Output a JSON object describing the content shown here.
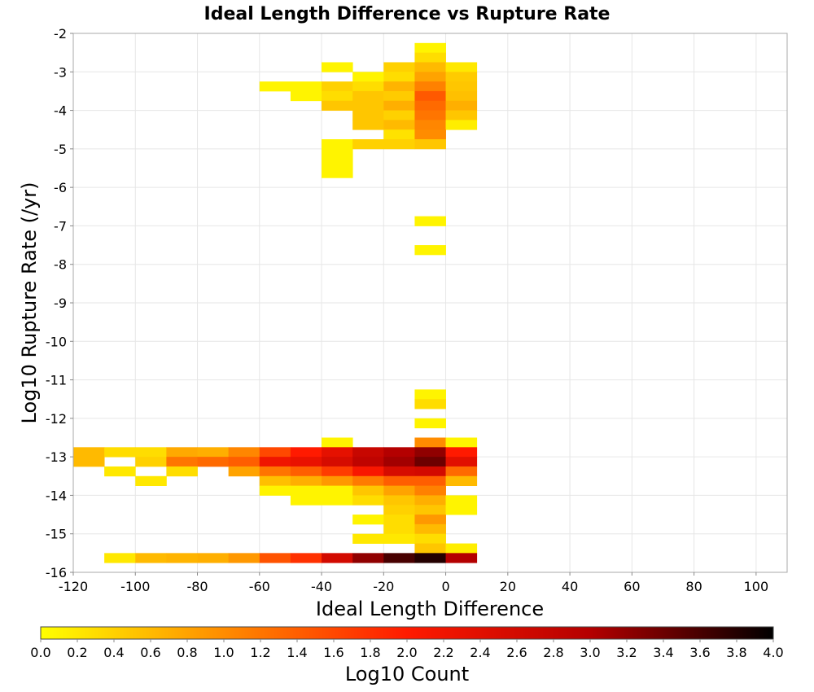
{
  "chart_data": {
    "type": "heatmap",
    "title": "Ideal Length Difference vs Rupture Rate",
    "xlabel": "Ideal Length Difference",
    "ylabel": "Log10 Rupture Rate (/yr)",
    "xlim": [
      -120,
      110
    ],
    "ylim": [
      -16,
      -2
    ],
    "x_ticks": [
      "-120",
      "-100",
      "-80",
      "-60",
      "-40",
      "-20",
      "0",
      "20",
      "40",
      "60",
      "80",
      "100"
    ],
    "y_ticks": [
      "-2",
      "-3",
      "-4",
      "-5",
      "-6",
      "-7",
      "-8",
      "-9",
      "-10",
      "-11",
      "-12",
      "-13",
      "-14",
      "-15",
      "-16"
    ],
    "grid": true,
    "bin_width_x": 10,
    "bin_height_y": 0.25,
    "colorbar": {
      "label": "Log10 Count",
      "range": [
        0.0,
        4.0
      ],
      "ticks": [
        "0.0",
        "0.2",
        "0.4",
        "0.6",
        "0.8",
        "1.0",
        "1.2",
        "1.4",
        "1.6",
        "1.8",
        "2.0",
        "2.2",
        "2.4",
        "2.6",
        "2.8",
        "3.0",
        "3.2",
        "3.4",
        "3.6",
        "3.8",
        "4.0"
      ],
      "colors": [
        "#ffff00",
        "#ff8c00",
        "#ff1a00",
        "#b40000",
        "#000000"
      ]
    },
    "cells": [
      {
        "x": -10,
        "y": -2.25,
        "v": 0.1
      },
      {
        "x": -10,
        "y": -2.5,
        "v": 0.3
      },
      {
        "x": -40,
        "y": -2.75,
        "v": 0.1
      },
      {
        "x": -20,
        "y": -2.75,
        "v": 0.4
      },
      {
        "x": -10,
        "y": -2.75,
        "v": 0.6
      },
      {
        "x": 0,
        "y": -2.75,
        "v": 0.2
      },
      {
        "x": -30,
        "y": -3.0,
        "v": 0.1
      },
      {
        "x": -20,
        "y": -3.0,
        "v": 0.3
      },
      {
        "x": -10,
        "y": -3.0,
        "v": 0.8
      },
      {
        "x": 0,
        "y": -3.0,
        "v": 0.45
      },
      {
        "x": -60,
        "y": -3.25,
        "v": 0.1
      },
      {
        "x": -50,
        "y": -3.25,
        "v": 0.1
      },
      {
        "x": -40,
        "y": -3.25,
        "v": 0.4
      },
      {
        "x": -30,
        "y": -3.25,
        "v": 0.3
      },
      {
        "x": -20,
        "y": -3.25,
        "v": 0.65
      },
      {
        "x": -10,
        "y": -3.25,
        "v": 1.1
      },
      {
        "x": 0,
        "y": -3.25,
        "v": 0.5
      },
      {
        "x": -50,
        "y": -3.5,
        "v": 0.1
      },
      {
        "x": -40,
        "y": -3.5,
        "v": 0.3
      },
      {
        "x": -30,
        "y": -3.5,
        "v": 0.5
      },
      {
        "x": -20,
        "y": -3.5,
        "v": 0.45
      },
      {
        "x": -10,
        "y": -3.5,
        "v": 1.45
      },
      {
        "x": 0,
        "y": -3.5,
        "v": 0.55
      },
      {
        "x": -40,
        "y": -3.75,
        "v": 0.5
      },
      {
        "x": -30,
        "y": -3.75,
        "v": 0.5
      },
      {
        "x": -20,
        "y": -3.75,
        "v": 0.7
      },
      {
        "x": -10,
        "y": -3.75,
        "v": 1.3
      },
      {
        "x": 0,
        "y": -3.75,
        "v": 0.7
      },
      {
        "x": -30,
        "y": -4.0,
        "v": 0.5
      },
      {
        "x": -20,
        "y": -4.0,
        "v": 0.4
      },
      {
        "x": -10,
        "y": -4.0,
        "v": 1.2
      },
      {
        "x": 0,
        "y": -4.0,
        "v": 0.5
      },
      {
        "x": -30,
        "y": -4.25,
        "v": 0.5
      },
      {
        "x": -20,
        "y": -4.25,
        "v": 0.6
      },
      {
        "x": -10,
        "y": -4.25,
        "v": 1.05
      },
      {
        "x": 0,
        "y": -4.25,
        "v": 0.15
      },
      {
        "x": -20,
        "y": -4.5,
        "v": 0.25
      },
      {
        "x": -10,
        "y": -4.5,
        "v": 1.0
      },
      {
        "x": -40,
        "y": -4.75,
        "v": 0.1
      },
      {
        "x": -30,
        "y": -4.75,
        "v": 0.4
      },
      {
        "x": -20,
        "y": -4.75,
        "v": 0.4
      },
      {
        "x": -10,
        "y": -4.75,
        "v": 0.5
      },
      {
        "x": -40,
        "y": -5.0,
        "v": 0.1
      },
      {
        "x": -40,
        "y": -5.25,
        "v": 0.1
      },
      {
        "x": -40,
        "y": -5.5,
        "v": 0.1
      },
      {
        "x": -10,
        "y": -6.75,
        "v": 0.1
      },
      {
        "x": -10,
        "y": -7.5,
        "v": 0.1
      },
      {
        "x": -10,
        "y": -11.25,
        "v": 0.1
      },
      {
        "x": -10,
        "y": -11.5,
        "v": 0.3
      },
      {
        "x": -10,
        "y": -12.0,
        "v": 0.1
      },
      {
        "x": -40,
        "y": -12.5,
        "v": 0.1
      },
      {
        "x": -10,
        "y": -12.5,
        "v": 1.0
      },
      {
        "x": 0,
        "y": -12.5,
        "v": 0.1
      },
      {
        "x": -120,
        "y": -12.75,
        "v": 0.6
      },
      {
        "x": -110,
        "y": -12.75,
        "v": 0.3
      },
      {
        "x": -100,
        "y": -12.75,
        "v": 0.3
      },
      {
        "x": -90,
        "y": -12.75,
        "v": 0.75
      },
      {
        "x": -80,
        "y": -12.75,
        "v": 0.7
      },
      {
        "x": -70,
        "y": -12.75,
        "v": 1.05
      },
      {
        "x": -60,
        "y": -12.75,
        "v": 1.6
      },
      {
        "x": -50,
        "y": -12.75,
        "v": 2.0
      },
      {
        "x": -40,
        "y": -12.75,
        "v": 2.35
      },
      {
        "x": -30,
        "y": -12.75,
        "v": 2.75
      },
      {
        "x": -20,
        "y": -12.75,
        "v": 3.0
      },
      {
        "x": -10,
        "y": -12.75,
        "v": 3.2
      },
      {
        "x": 0,
        "y": -12.75,
        "v": 2.0
      },
      {
        "x": -120,
        "y": -13.0,
        "v": 0.6
      },
      {
        "x": -100,
        "y": -13.0,
        "v": 0.4
      },
      {
        "x": -90,
        "y": -13.0,
        "v": 1.2
      },
      {
        "x": -80,
        "y": -13.0,
        "v": 1.3
      },
      {
        "x": -70,
        "y": -13.0,
        "v": 1.4
      },
      {
        "x": -60,
        "y": -13.0,
        "v": 2.2
      },
      {
        "x": -50,
        "y": -13.0,
        "v": 2.3
      },
      {
        "x": -40,
        "y": -13.0,
        "v": 2.55
      },
      {
        "x": -30,
        "y": -13.0,
        "v": 2.85
      },
      {
        "x": -20,
        "y": -13.0,
        "v": 3.1
      },
      {
        "x": -10,
        "y": -13.0,
        "v": 3.4
      },
      {
        "x": 0,
        "y": -13.0,
        "v": 2.4
      },
      {
        "x": -110,
        "y": -13.25,
        "v": 0.2
      },
      {
        "x": -90,
        "y": -13.25,
        "v": 0.3
      },
      {
        "x": -70,
        "y": -13.25,
        "v": 0.8
      },
      {
        "x": -60,
        "y": -13.25,
        "v": 1.2
      },
      {
        "x": -50,
        "y": -13.25,
        "v": 1.4
      },
      {
        "x": -40,
        "y": -13.25,
        "v": 1.7
      },
      {
        "x": -30,
        "y": -13.25,
        "v": 2.1
      },
      {
        "x": -20,
        "y": -13.25,
        "v": 2.55
      },
      {
        "x": -10,
        "y": -13.25,
        "v": 2.6
      },
      {
        "x": 0,
        "y": -13.25,
        "v": 1.3
      },
      {
        "x": -100,
        "y": -13.5,
        "v": 0.2
      },
      {
        "x": -60,
        "y": -13.5,
        "v": 0.55
      },
      {
        "x": -50,
        "y": -13.5,
        "v": 0.7
      },
      {
        "x": -40,
        "y": -13.5,
        "v": 0.9
      },
      {
        "x": -30,
        "y": -13.5,
        "v": 1.15
      },
      {
        "x": -20,
        "y": -13.5,
        "v": 1.4
      },
      {
        "x": -10,
        "y": -13.5,
        "v": 1.4
      },
      {
        "x": 0,
        "y": -13.5,
        "v": 0.6
      },
      {
        "x": -60,
        "y": -13.75,
        "v": 0.1
      },
      {
        "x": -50,
        "y": -13.75,
        "v": 0.1
      },
      {
        "x": -40,
        "y": -13.75,
        "v": 0.1
      },
      {
        "x": -30,
        "y": -13.75,
        "v": 0.5
      },
      {
        "x": -20,
        "y": -13.75,
        "v": 0.8
      },
      {
        "x": -10,
        "y": -13.75,
        "v": 1.1
      },
      {
        "x": -50,
        "y": -14.0,
        "v": 0.1
      },
      {
        "x": -40,
        "y": -14.0,
        "v": 0.1
      },
      {
        "x": -30,
        "y": -14.0,
        "v": 0.3
      },
      {
        "x": -20,
        "y": -14.0,
        "v": 0.5
      },
      {
        "x": -10,
        "y": -14.0,
        "v": 0.7
      },
      {
        "x": 0,
        "y": -14.0,
        "v": 0.1
      },
      {
        "x": -20,
        "y": -14.25,
        "v": 0.4
      },
      {
        "x": -10,
        "y": -14.25,
        "v": 0.5
      },
      {
        "x": 0,
        "y": -14.25,
        "v": 0.1
      },
      {
        "x": -30,
        "y": -14.5,
        "v": 0.1
      },
      {
        "x": -20,
        "y": -14.5,
        "v": 0.3
      },
      {
        "x": -10,
        "y": -14.5,
        "v": 0.9
      },
      {
        "x": -20,
        "y": -14.75,
        "v": 0.3
      },
      {
        "x": -10,
        "y": -14.75,
        "v": 0.6
      },
      {
        "x": -30,
        "y": -15.0,
        "v": 0.2
      },
      {
        "x": -20,
        "y": -15.0,
        "v": 0.2
      },
      {
        "x": -10,
        "y": -15.0,
        "v": 0.3
      },
      {
        "x": -10,
        "y": -15.25,
        "v": 0.5
      },
      {
        "x": 0,
        "y": -15.25,
        "v": 0.15
      },
      {
        "x": -110,
        "y": -15.5,
        "v": 0.2
      },
      {
        "x": -100,
        "y": -15.5,
        "v": 0.6
      },
      {
        "x": -90,
        "y": -15.5,
        "v": 0.65
      },
      {
        "x": -80,
        "y": -15.5,
        "v": 0.7
      },
      {
        "x": -70,
        "y": -15.5,
        "v": 0.9
      },
      {
        "x": -60,
        "y": -15.5,
        "v": 1.5
      },
      {
        "x": -50,
        "y": -15.5,
        "v": 1.8
      },
      {
        "x": -40,
        "y": -15.5,
        "v": 2.6
      },
      {
        "x": -30,
        "y": -15.5,
        "v": 3.2
      },
      {
        "x": -20,
        "y": -15.5,
        "v": 3.6
      },
      {
        "x": -10,
        "y": -15.5,
        "v": 3.8
      },
      {
        "x": 0,
        "y": -15.5,
        "v": 3.0
      }
    ]
  }
}
